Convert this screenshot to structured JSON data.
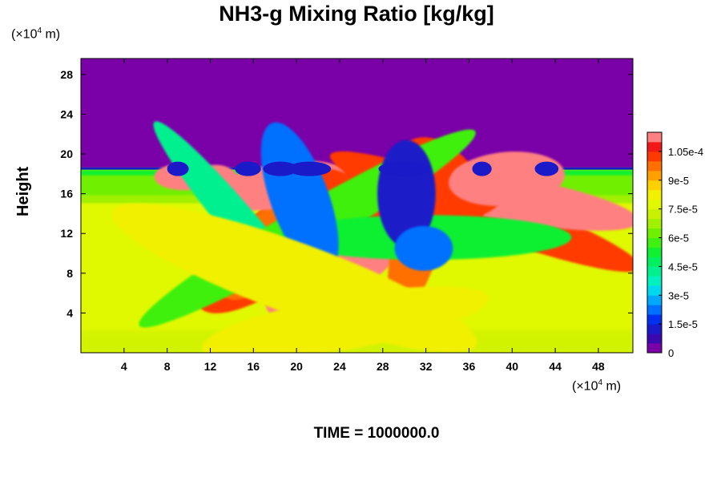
{
  "chart_data": {
    "type": "heatmap",
    "title": "NH3-g Mixing Ratio [kg/kg]",
    "ylabel": "Height",
    "x_unit": {
      "prefix": "(×10",
      "exp": "4",
      "suffix": " m)"
    },
    "y_unit": {
      "prefix": "(×10",
      "exp": "4",
      "suffix": " m)"
    },
    "xlim": [
      0,
      51.2
    ],
    "ylim": [
      0,
      29.6
    ],
    "x_ticks": [
      4,
      8,
      12,
      16,
      20,
      24,
      28,
      32,
      36,
      40,
      44,
      48
    ],
    "y_ticks": [
      4,
      8,
      12,
      16,
      20,
      24,
      28
    ],
    "x_tick_labels": [
      "4",
      "8",
      "12",
      "16",
      "20",
      "24",
      "28",
      "32",
      "36",
      "40",
      "44",
      "48"
    ],
    "y_tick_labels": [
      "4",
      "8",
      "12",
      "16",
      "20",
      "24",
      "28"
    ],
    "colorbar": {
      "min": 0,
      "max": 0.000115,
      "levels": 23,
      "tick_values": [
        0,
        1.5e-05,
        3e-05,
        4.5e-05,
        6e-05,
        7.5e-05,
        9e-05,
        0.000105
      ],
      "tick_labels": [
        "0",
        "1.5e-5",
        "3e-5",
        "4.5e-5",
        "6e-5",
        "7.5e-5",
        "9e-5",
        "1.05e-4"
      ],
      "colors": [
        "#7a00a8",
        "#3a0ab0",
        "#1a1ac8",
        "#0030f0",
        "#0070ff",
        "#00a8ff",
        "#00d8f0",
        "#00f0c0",
        "#00f090",
        "#00f060",
        "#10f030",
        "#40f010",
        "#70f000",
        "#a0f000",
        "#c8f000",
        "#e0f800",
        "#f0f000",
        "#ffd000",
        "#ffa000",
        "#ff7000",
        "#ff3a00",
        "#f01818",
        "#ff8080"
      ]
    },
    "regions": {
      "top_value": 0,
      "interface_height": 18.5,
      "band_value": 6.2e-05,
      "band_bottom": 15.2,
      "lower_value": 7.6e-05,
      "bottom_value": 7.4e-05
    }
  },
  "footer": {
    "time_label": "TIME = ",
    "time_value": "1000000.0"
  }
}
